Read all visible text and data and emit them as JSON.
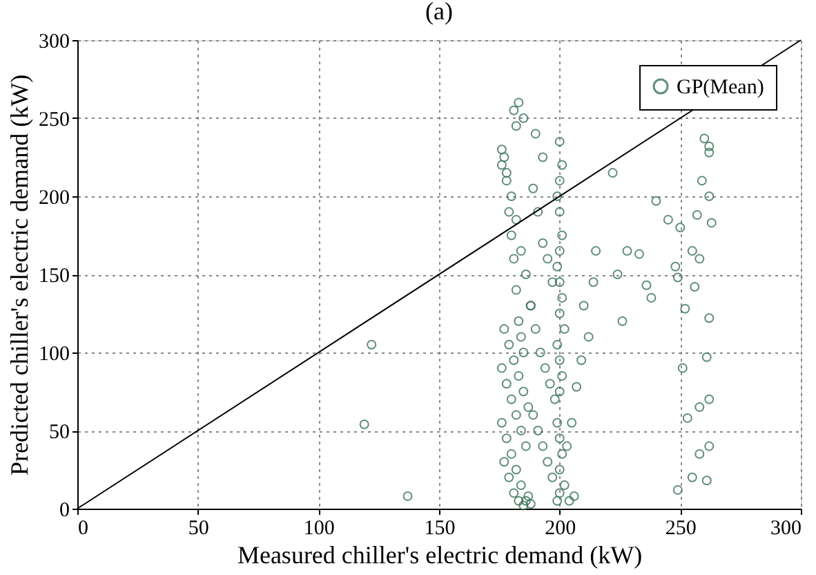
{
  "chart_data": {
    "type": "scatter",
    "title": "(a)",
    "xlabel": "Measured chiller's electric demand (kW)",
    "ylabel": "Predicted chiller's electric demand (kW)",
    "xlim": [
      0,
      300
    ],
    "ylim": [
      0,
      300
    ],
    "xticks": [
      0,
      50,
      100,
      150,
      200,
      250,
      300
    ],
    "yticks": [
      0,
      50,
      100,
      150,
      200,
      250,
      300
    ],
    "grid": true,
    "legend": "top right",
    "marker": "circle",
    "series": [
      {
        "name": "GP(Mean)",
        "color": "#3a7358",
        "x": [
          119,
          122,
          137,
          176,
          177,
          178,
          179,
          180,
          181,
          182,
          183,
          184,
          185,
          176,
          178,
          180,
          182,
          184,
          186,
          177,
          179,
          181,
          183,
          185,
          187,
          176,
          178,
          180,
          182,
          184,
          186,
          188,
          177,
          179,
          181,
          183,
          185,
          187,
          176,
          178,
          180,
          182,
          184,
          186,
          188,
          182,
          183,
          181,
          185,
          190,
          193,
          189,
          191,
          193,
          195,
          197,
          188,
          190,
          192,
          194,
          196,
          198,
          189,
          191,
          193,
          195,
          197,
          200,
          199,
          200,
          201,
          200,
          199,
          200,
          201,
          200,
          199,
          200,
          201,
          200,
          202,
          199,
          200,
          201,
          200,
          199,
          200,
          201,
          200,
          202,
          204,
          206,
          203,
          205,
          207,
          209,
          210,
          212,
          214,
          215,
          222,
          224,
          226,
          228,
          233,
          236,
          238,
          240,
          245,
          248,
          249,
          249,
          250,
          251,
          252,
          253,
          255,
          255,
          256,
          257,
          258,
          258,
          259,
          260,
          261,
          262,
          262,
          262,
          262,
          263,
          262,
          262,
          261,
          258
        ],
        "values": [
          54,
          105,
          8,
          230,
          225,
          210,
          190,
          175,
          160,
          140,
          120,
          110,
          100,
          90,
          80,
          70,
          60,
          50,
          40,
          30,
          20,
          10,
          5,
          2,
          8,
          220,
          215,
          200,
          185,
          165,
          150,
          130,
          115,
          105,
          95,
          85,
          75,
          65,
          55,
          45,
          35,
          25,
          15,
          5,
          3,
          245,
          260,
          255,
          250,
          240,
          225,
          205,
          190,
          170,
          160,
          145,
          130,
          115,
          100,
          90,
          80,
          70,
          60,
          50,
          40,
          30,
          20,
          10,
          5,
          235,
          220,
          210,
          200,
          190,
          175,
          165,
          155,
          145,
          135,
          125,
          115,
          105,
          95,
          85,
          75,
          55,
          45,
          35,
          25,
          15,
          5,
          8,
          40,
          55,
          78,
          95,
          130,
          110,
          145,
          165,
          215,
          150,
          120,
          165,
          163,
          143,
          135,
          197,
          185,
          155,
          148,
          12,
          180,
          90,
          128,
          58,
          165,
          20,
          142,
          188,
          160,
          35,
          210,
          237,
          97,
          232,
          228,
          200,
          70,
          183,
          122,
          40,
          18,
          65
        ],
        "line_style": "none"
      },
      {
        "type": "line",
        "color": "#000000",
        "x": [
          0,
          300
        ],
        "values": [
          0,
          300
        ],
        "line_style": "solid",
        "marker": "none"
      }
    ]
  }
}
